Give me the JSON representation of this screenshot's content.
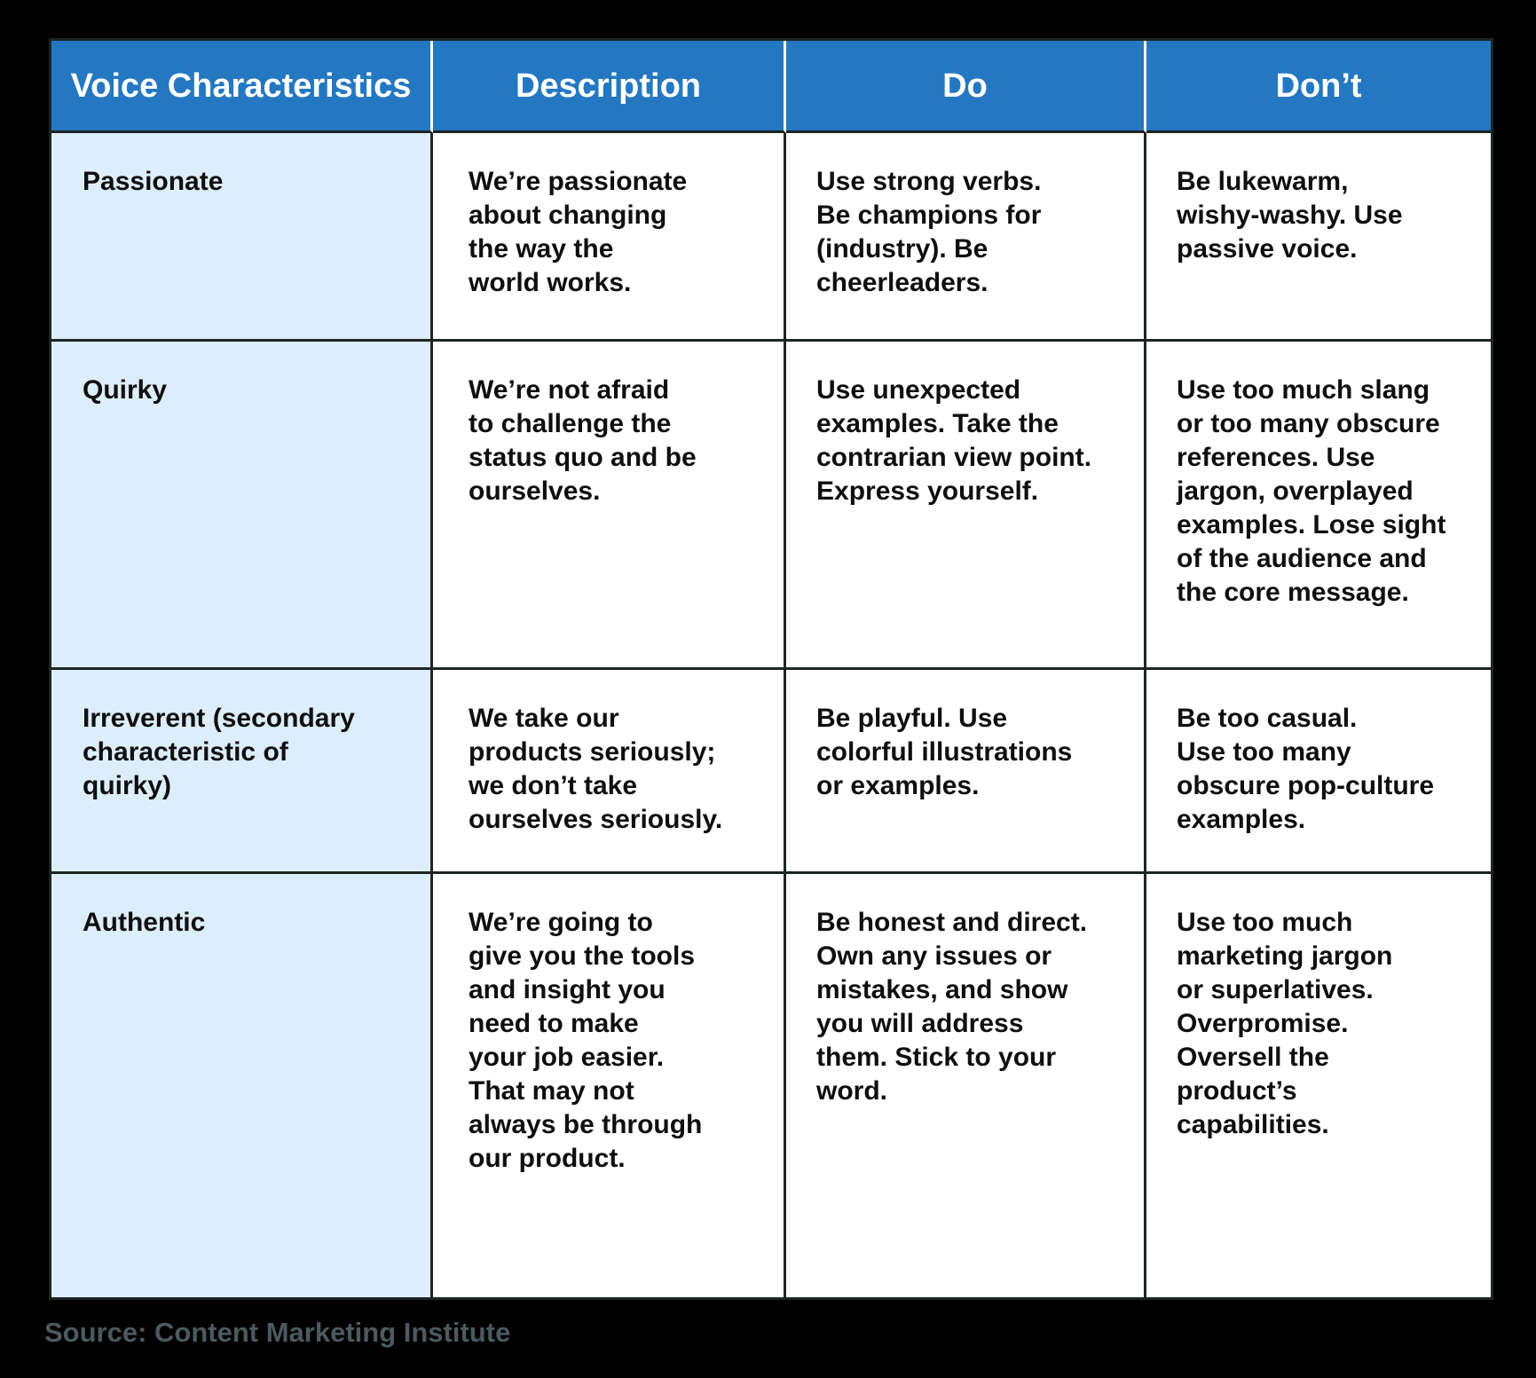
{
  "table": {
    "headers": {
      "characteristic": "Voice Characteristics",
      "description": "Description",
      "do": "Do",
      "dont": "Don’t"
    },
    "rows": [
      {
        "characteristic": "Passionate",
        "description": "We’re passionate\nabout changing\nthe way the\nworld works.",
        "do": "Use strong verbs.\nBe champions for\n(industry). Be\ncheerleaders.",
        "dont": "Be lukewarm,\nwishy-washy. Use\npassive voice."
      },
      {
        "characteristic": "Quirky",
        "description": "We’re not afraid\nto challenge the\nstatus quo and be\nourselves.",
        "do": "Use unexpected\nexamples. Take the\ncontrarian view point.\nExpress yourself.",
        "dont": "Use too much slang\nor too many obscure\nreferences. Use\njargon, overplayed\nexamples. Lose sight\nof the audience and\nthe core message."
      },
      {
        "characteristic": "Irreverent (secondary\ncharacteristic of\nquirky)",
        "description": "We take our\nproducts seriously;\nwe don’t take\nourselves seriously.",
        "do": "Be playful. Use\ncolorful illustrations\nor examples.",
        "dont": "Be too casual.\nUse too many\nobscure pop-culture\nexamples."
      },
      {
        "characteristic": "Authentic",
        "description": "We’re going to\ngive you the tools\nand insight you\nneed to make\nyour job easier.\nThat may not\nalways be through\nour product.",
        "do": "Be honest and direct.\nOwn any issues or\nmistakes, and show\nyou will address\nthem. Stick to your\nword.",
        "dont": "Use too much\nmarketing jargon\nor superlatives.\nOverpromise.\nOversell the\nproduct’s\ncapabilities."
      }
    ]
  },
  "source": {
    "label": "Source: Content Marketing Institute"
  },
  "colors": {
    "page_bg": "#000000",
    "header_bg": "#2478C2",
    "header_text": "#FFFFFF",
    "row_label_bg": "#DCEEFB",
    "cell_bg": "#FFFFFF",
    "border": "#1D2522",
    "body_text": "#0F0F0F",
    "source_text": "#4B5A5E"
  }
}
